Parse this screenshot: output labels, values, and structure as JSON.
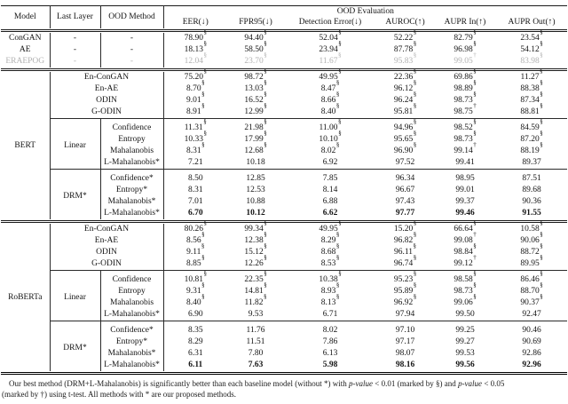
{
  "table": {
    "group_header": "OOD Evaluation",
    "columns": [
      "Model",
      "Last Layer",
      "OOD Method",
      "EER(↓)",
      "FPR95(↓)",
      "Detection Error(↓)",
      "AUROC(↑)",
      "AUPR In(↑)",
      "AUPR Out(↑)"
    ],
    "blocks": [
      {
        "kind": "plain",
        "rows": [
          {
            "model": "ConGAN",
            "last_layer": "-",
            "method": "-",
            "values": [
              "78.90§",
              "94.40§",
              "52.04§",
              "52.22§",
              "82.79§",
              "23.54§"
            ]
          },
          {
            "model": "AE",
            "last_layer": "-",
            "method": "-",
            "values": [
              "18.13§",
              "58.50§",
              "23.94§",
              "87.78§",
              "96.98§",
              "54.12§"
            ]
          },
          {
            "model": "ERAEPOG",
            "last_layer": "-",
            "method": "-",
            "muted": true,
            "values": [
              "12.04§",
              "23.70§",
              "11.67§",
              "95.83§",
              "99.05†",
              "83.98§"
            ]
          }
        ]
      },
      {
        "kind": "model",
        "model": "BERT",
        "subs": [
          {
            "last_layer": null,
            "rows": [
              {
                "method": "En-ConGAN",
                "values": [
                  "75.20§",
                  "98.72§",
                  "49.95§",
                  "22.36§",
                  "69.86§",
                  "11.27§"
                ]
              },
              {
                "method": "En-AE",
                "values": [
                  "8.70§",
                  "13.03§",
                  "8.47§",
                  "96.12§",
                  "98.89§",
                  "88.38§"
                ]
              },
              {
                "method": "ODIN",
                "values": [
                  "9.01§",
                  "16.52§",
                  "8.66§",
                  "96.24§",
                  "98.73§",
                  "87.34§"
                ]
              },
              {
                "method": "G-ODIN",
                "values": [
                  "8.91§",
                  "12.99§",
                  "8.40§",
                  "95.81§",
                  "98.75†",
                  "88.81§"
                ]
              }
            ]
          },
          {
            "last_layer": "Linear",
            "rows": [
              {
                "method": "Confidence",
                "values": [
                  "11.31§",
                  "21.98§",
                  "11.00§",
                  "94.96§",
                  "98.52§",
                  "84.59§"
                ]
              },
              {
                "method": "Entropy",
                "values": [
                  "10.33§",
                  "17.99§",
                  "10.10§",
                  "95.65§",
                  "98.73§",
                  "87.20§"
                ]
              },
              {
                "method": "Mahalanobis",
                "values": [
                  "8.31§",
                  "12.68§",
                  "8.02§",
                  "96.90§",
                  "99.14†",
                  "88.19§"
                ]
              },
              {
                "method": "L-Mahalanobis*",
                "values": [
                  "7.21",
                  "10.18",
                  "6.92",
                  "97.52",
                  "99.41",
                  "89.37"
                ]
              }
            ]
          },
          {
            "last_layer": "DRM*",
            "rows": [
              {
                "method": "Confidence*",
                "values": [
                  "8.50",
                  "12.85",
                  "7.85",
                  "96.34",
                  "98.95",
                  "87.51"
                ]
              },
              {
                "method": "Entropy*",
                "values": [
                  "8.31",
                  "12.53",
                  "8.14",
                  "96.67",
                  "99.01",
                  "89.68"
                ]
              },
              {
                "method": "Mahalanobis*",
                "values": [
                  "7.01",
                  "10.88",
                  "6.88",
                  "97.43",
                  "99.37",
                  "90.36"
                ]
              },
              {
                "method": "L-Mahalanobis*",
                "bold": true,
                "values": [
                  "6.70",
                  "10.12",
                  "6.62",
                  "97.77",
                  "99.46",
                  "91.55"
                ]
              }
            ]
          }
        ]
      },
      {
        "kind": "model",
        "model": "RoBERTa",
        "subs": [
          {
            "last_layer": null,
            "rows": [
              {
                "method": "En-ConGAN",
                "values": [
                  "80.26§",
                  "99.34§",
                  "49.95§",
                  "15.20§",
                  "66.64§",
                  "10.58§"
                ]
              },
              {
                "method": "En-AE",
                "values": [
                  "8.56§",
                  "12.38§",
                  "8.29§",
                  "96.82§",
                  "99.08†",
                  "90.06§"
                ]
              },
              {
                "method": "ODIN",
                "values": [
                  "9.11§",
                  "15.12§",
                  "8.68§",
                  "96.11§",
                  "98.84§",
                  "88.72§"
                ]
              },
              {
                "method": "G-ODIN",
                "values": [
                  "8.85§",
                  "12.26§",
                  "8.53§",
                  "96.74§",
                  "99.12†",
                  "89.95§"
                ]
              }
            ]
          },
          {
            "last_layer": "Linear",
            "rows": [
              {
                "method": "Confidence",
                "values": [
                  "10.81§",
                  "22.35§",
                  "10.38§",
                  "95.23§",
                  "98.58§",
                  "86.46§"
                ]
              },
              {
                "method": "Entropy",
                "values": [
                  "9.31§",
                  "14.81§",
                  "8.93§",
                  "95.89§",
                  "98.73§",
                  "88.70§"
                ]
              },
              {
                "method": "Mahalanobis",
                "values": [
                  "8.40§",
                  "11.82§",
                  "8.13§",
                  "96.92§",
                  "99.06§",
                  "90.37§"
                ]
              },
              {
                "method": "L-Mahalanobis*",
                "values": [
                  "6.90",
                  "9.53",
                  "6.71",
                  "97.94",
                  "99.50",
                  "92.47"
                ]
              }
            ]
          },
          {
            "last_layer": "DRM*",
            "rows": [
              {
                "method": "Confidence*",
                "values": [
                  "8.35",
                  "11.76",
                  "8.02",
                  "97.10",
                  "99.25",
                  "90.46"
                ]
              },
              {
                "method": "Entropy*",
                "values": [
                  "8.29",
                  "11.51",
                  "7.86",
                  "97.17",
                  "99.27",
                  "90.69"
                ]
              },
              {
                "method": "Mahalanobis*",
                "values": [
                  "6.31",
                  "7.80",
                  "6.13",
                  "98.07",
                  "99.53",
                  "92.86"
                ]
              },
              {
                "method": "L-Mahalanobis*",
                "bold": true,
                "values": [
                  "6.11",
                  "7.63",
                  "5.98",
                  "98.16",
                  "99.56",
                  "92.96"
                ]
              }
            ]
          }
        ]
      }
    ]
  },
  "caption": {
    "lines": [
      [
        {
          "t": "Our best method (DRM+L-Mahalanobis) is significantly better than each baseline model (without *) with "
        },
        {
          "t": "p-value",
          "i": true
        },
        {
          "t": " < 0.01 (marked by §) and "
        },
        {
          "t": "p-value",
          "i": true
        },
        {
          "t": " < 0.05"
        }
      ],
      [
        {
          "t": "(marked by †) using t-test. All methods with * are our proposed methods."
        }
      ]
    ]
  },
  "colors": {
    "text": "#141414",
    "muted_row": "#b2b2b2",
    "rule": "#1a1a1a",
    "background": "#ffffff"
  }
}
